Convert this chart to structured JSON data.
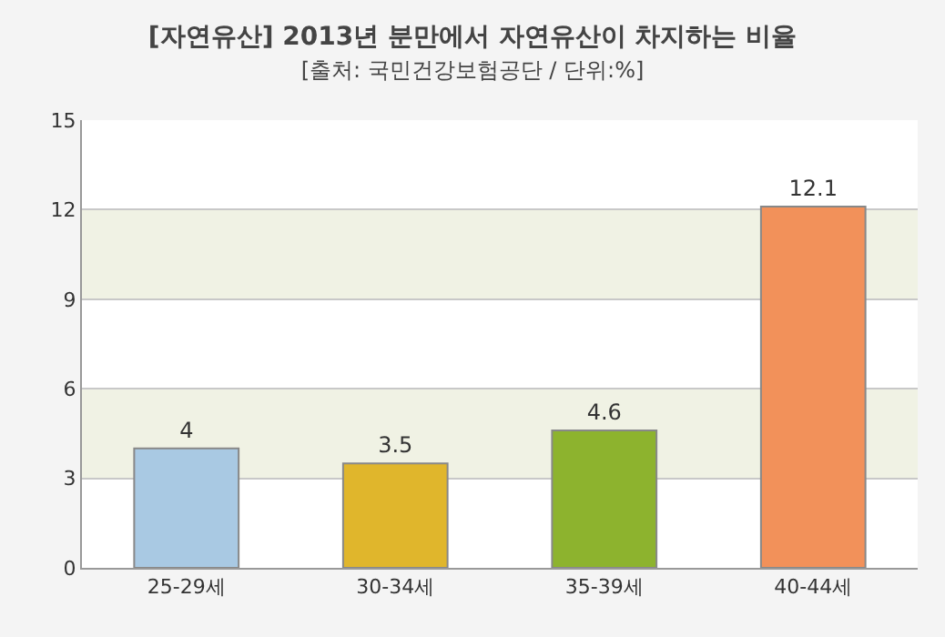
{
  "chart_data": {
    "type": "bar",
    "title": "[자연유산] 2013년 분만에서 자연유산이 차지하는 비율",
    "subtitle": "[출처: 국민건강보험공단 / 단위:%]",
    "categories": [
      "25-29세",
      "30-34세",
      "35-39세",
      "40-44세"
    ],
    "values": [
      4,
      3.5,
      4.6,
      12.1
    ],
    "colors": [
      "#a9c9e3",
      "#e0b62c",
      "#8db32e",
      "#f2915a"
    ],
    "ylim": [
      0,
      15
    ],
    "yticks": [
      0,
      3,
      6,
      9,
      12,
      15
    ],
    "grid": "y",
    "data_labels": true,
    "bands": [
      {
        "axis": "y",
        "from": 3,
        "to": 6,
        "color": "#f0f2e4"
      },
      {
        "axis": "y",
        "from": 9,
        "to": 12,
        "color": "#f0f2e4"
      }
    ]
  }
}
